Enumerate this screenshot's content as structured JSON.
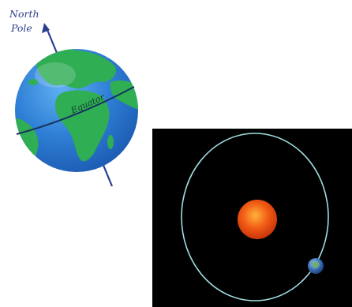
{
  "globe": {
    "north_label_line1": "North",
    "north_label_line2": "Pole",
    "equator_label": "Equator"
  },
  "colors": {
    "ocean": "#2f7fd6",
    "land": "#2fae54",
    "axis": "#2a3f8f",
    "orbit_background": "#000000",
    "orbit_path": "#9fdde0",
    "sun": "#f25a14",
    "earth_small": "#3b6fb8"
  }
}
